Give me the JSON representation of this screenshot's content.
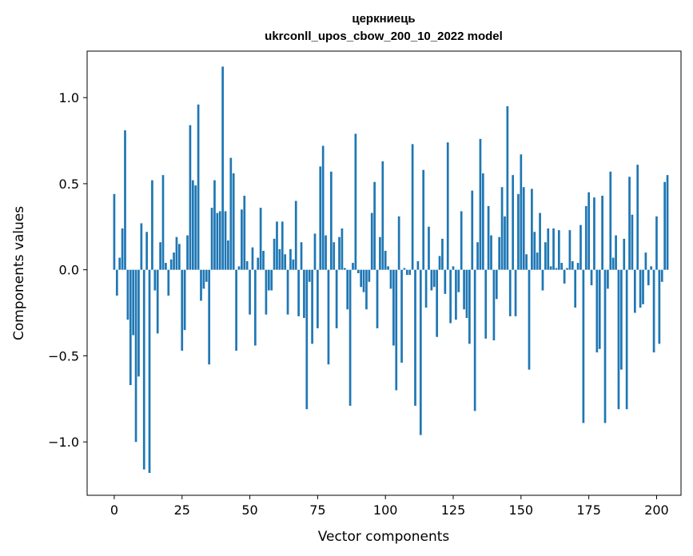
{
  "chart_data": {
    "type": "bar",
    "title_line1": "церкниець",
    "title_line2": "ukrconll_upos_cbow_200_10_2022 model",
    "xlabel": "Vector components",
    "ylabel": "Components values",
    "xlim": [
      -10,
      209
    ],
    "ylim": [
      -1.31,
      1.27
    ],
    "xticks": [
      0,
      25,
      50,
      75,
      100,
      125,
      150,
      175,
      200
    ],
    "xtick_labels": [
      "0",
      "25",
      "50",
      "75",
      "100",
      "125",
      "150",
      "175",
      "200"
    ],
    "yticks": [
      1.0,
      0.5,
      0.0,
      -0.5,
      -1.0
    ],
    "ytick_labels": [
      "1.0",
      "0.5",
      "0.0",
      "−0.5",
      "−1.0"
    ],
    "bar_color": "#1f77b4",
    "values": [
      0.44,
      -0.15,
      0.07,
      0.24,
      0.81,
      -0.29,
      -0.67,
      -0.38,
      -1.0,
      -0.62,
      0.27,
      -1.16,
      0.22,
      -1.18,
      0.52,
      -0.12,
      -0.37,
      0.16,
      0.55,
      0.04,
      -0.15,
      0.06,
      0.1,
      0.19,
      0.15,
      -0.47,
      -0.35,
      0.2,
      0.84,
      0.52,
      0.49,
      0.96,
      -0.18,
      -0.11,
      -0.07,
      -0.55,
      0.36,
      0.52,
      0.33,
      0.34,
      1.18,
      0.34,
      0.17,
      0.65,
      0.56,
      -0.47,
      0.02,
      0.35,
      0.43,
      0.05,
      -0.26,
      0.13,
      -0.44,
      0.07,
      0.36,
      0.11,
      -0.26,
      -0.12,
      -0.12,
      0.18,
      0.28,
      0.12,
      0.28,
      0.09,
      -0.26,
      0.12,
      0.06,
      0.4,
      -0.27,
      0.16,
      -0.28,
      -0.81,
      -0.07,
      -0.43,
      0.21,
      -0.34,
      0.6,
      0.72,
      0.2,
      -0.55,
      0.57,
      0.16,
      -0.34,
      0.19,
      0.24,
      0.01,
      -0.23,
      -0.79,
      0.04,
      0.79,
      -0.02,
      -0.1,
      -0.13,
      -0.23,
      -0.07,
      0.33,
      0.51,
      -0.34,
      0.19,
      0.63,
      0.11,
      0.02,
      -0.11,
      -0.44,
      -0.7,
      0.31,
      -0.54,
      0.01,
      -0.03,
      -0.03,
      0.73,
      -0.79,
      0.05,
      -0.96,
      0.58,
      -0.22,
      0.25,
      -0.12,
      -0.1,
      -0.39,
      0.08,
      0.18,
      -0.14,
      0.74,
      -0.31,
      0.02,
      -0.29,
      -0.13,
      0.34,
      -0.23,
      -0.28,
      -0.43,
      0.46,
      -0.82,
      0.16,
      0.76,
      0.56,
      -0.4,
      0.37,
      0.2,
      -0.41,
      -0.17,
      0.19,
      0.48,
      0.31,
      0.95,
      -0.27,
      0.55,
      -0.27,
      0.44,
      0.67,
      0.48,
      0.09,
      -0.58,
      0.47,
      0.22,
      0.1,
      0.33,
      -0.12,
      0.16,
      0.24,
      0.02,
      0.24,
      0.01,
      0.23,
      0.04,
      -0.08,
      0.01,
      0.23,
      0.05,
      -0.22,
      0.04,
      0.26,
      -0.89,
      0.37,
      0.45,
      -0.09,
      0.42,
      -0.48,
      -0.46,
      0.43,
      -0.89,
      -0.11,
      0.57,
      0.07,
      0.2,
      -0.81,
      -0.58,
      0.18,
      -0.81,
      0.54,
      0.32,
      -0.25,
      0.61,
      -0.22,
      -0.2,
      0.1,
      -0.09,
      0.02,
      -0.48,
      0.31,
      -0.43,
      -0.07,
      0.51,
      0.55
    ]
  }
}
